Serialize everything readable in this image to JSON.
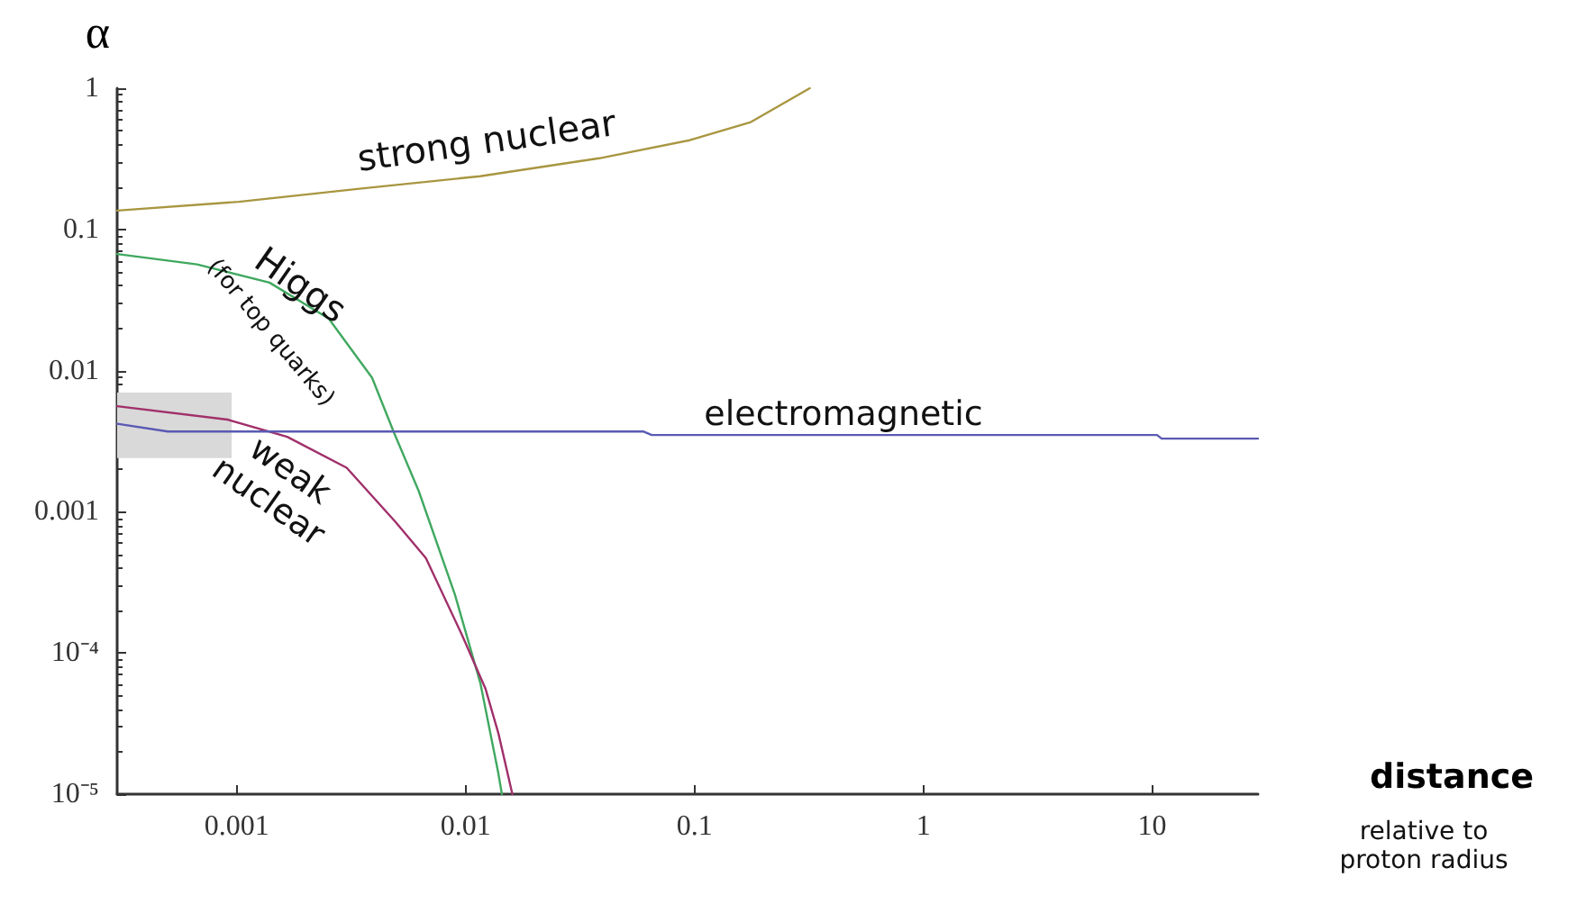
{
  "chart_data": {
    "type": "line",
    "xlabel": "distance",
    "ylabel": "α",
    "log": "xy",
    "grid": false,
    "marker": "none",
    "line_style": "solid",
    "xlim": [
      0.0003,
      29
    ],
    "ylim": [
      1e-05,
      1
    ],
    "xticks": [
      0.001,
      0.01,
      0.1,
      1,
      10
    ],
    "yticks": [
      1,
      0.1,
      0.01,
      0.001,
      {
        "value": 0.0001,
        "label": "10⁻⁴"
      },
      {
        "value": 1e-05,
        "label": "10⁻⁵"
      }
    ],
    "series": [
      {
        "type": "area",
        "color": "#d9d9d9",
        "x": [
          0.0003,
          0.00095
        ],
        "values": [
          null,
          null
        ],
        "lower": [
          0.0024,
          0.0024
        ],
        "upper": [
          0.007,
          0.007
        ]
      },
      {
        "color": "#a89640",
        "x": [
          0.0003,
          0.00102,
          0.00343,
          0.01156,
          0.0383,
          0.0947,
          0.175,
          0.319
        ],
        "values": [
          0.136,
          0.157,
          0.194,
          0.238,
          0.319,
          0.427,
          0.573,
          1.0
        ]
      },
      {
        "color": "#40a860",
        "x": [
          0.0003,
          0.00067,
          0.00139,
          0.00252,
          0.0039,
          0.00484,
          0.00624,
          0.00897,
          0.0116,
          0.0139,
          0.0144
        ],
        "values": [
          0.067,
          0.0565,
          0.042,
          0.0234,
          0.0089,
          0.0037,
          0.0014,
          0.00026,
          6.1e-05,
          1.4e-05,
          1e-05
        ]
      },
      {
        "color": "#a0306a",
        "x": [
          0.0003,
          0.00091,
          0.00166,
          0.00302,
          0.00493,
          0.0067,
          0.00964,
          0.0122,
          0.0139,
          0.016
        ],
        "values": [
          0.0056,
          0.0045,
          0.0034,
          0.00205,
          0.00085,
          0.00047,
          0.000134,
          5.6e-05,
          2.7e-05,
          1e-05
        ]
      },
      {
        "color": "#5a5ab4",
        "x": [
          0.0003,
          0.0005,
          0.06,
          0.065,
          10.5,
          11,
          29
        ],
        "values": [
          0.0042,
          0.0037,
          0.0037,
          0.0035,
          0.0035,
          0.0033,
          0.0033
        ]
      }
    ],
    "annotations": [
      "strong nuclear",
      "Higgs",
      "(for top quarks)",
      "electromagnetic",
      "weak\nnuclear",
      "relative to\nproton radius"
    ]
  }
}
